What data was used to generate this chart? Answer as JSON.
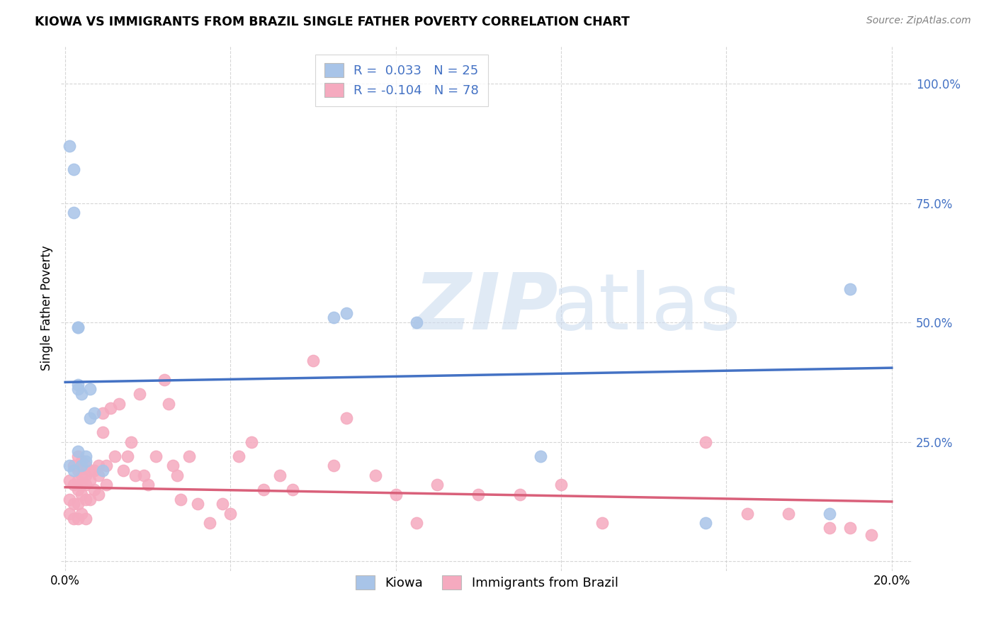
{
  "title": "KIOWA VS IMMIGRANTS FROM BRAZIL SINGLE FATHER POVERTY CORRELATION CHART",
  "source": "Source: ZipAtlas.com",
  "ylabel": "Single Father Poverty",
  "xlim": [
    -0.001,
    0.205
  ],
  "ylim": [
    -0.02,
    1.08
  ],
  "kiowa_R": 0.033,
  "kiowa_N": 25,
  "brazil_R": -0.104,
  "brazil_N": 78,
  "kiowa_color": "#a8c4e8",
  "brazil_color": "#f5aabf",
  "kiowa_line_color": "#4472C4",
  "brazil_line_color": "#d9607a",
  "kiowa_x": [
    0.001,
    0.002,
    0.002,
    0.003,
    0.003,
    0.003,
    0.003,
    0.004,
    0.004,
    0.005,
    0.005,
    0.006,
    0.006,
    0.007,
    0.009,
    0.065,
    0.068,
    0.085,
    0.115,
    0.155,
    0.185,
    0.19,
    0.001,
    0.002,
    0.003
  ],
  "kiowa_y": [
    0.87,
    0.82,
    0.73,
    0.49,
    0.49,
    0.37,
    0.36,
    0.35,
    0.2,
    0.22,
    0.21,
    0.36,
    0.3,
    0.31,
    0.19,
    0.51,
    0.52,
    0.5,
    0.22,
    0.08,
    0.1,
    0.57,
    0.2,
    0.19,
    0.23
  ],
  "brazil_x": [
    0.001,
    0.001,
    0.001,
    0.002,
    0.002,
    0.002,
    0.002,
    0.003,
    0.003,
    0.003,
    0.003,
    0.003,
    0.003,
    0.004,
    0.004,
    0.004,
    0.004,
    0.004,
    0.005,
    0.005,
    0.005,
    0.005,
    0.005,
    0.006,
    0.006,
    0.006,
    0.007,
    0.007,
    0.008,
    0.008,
    0.008,
    0.009,
    0.009,
    0.01,
    0.01,
    0.011,
    0.012,
    0.013,
    0.014,
    0.015,
    0.016,
    0.017,
    0.018,
    0.019,
    0.02,
    0.022,
    0.024,
    0.025,
    0.026,
    0.027,
    0.028,
    0.03,
    0.032,
    0.035,
    0.038,
    0.04,
    0.042,
    0.045,
    0.048,
    0.052,
    0.055,
    0.06,
    0.065,
    0.068,
    0.075,
    0.08,
    0.085,
    0.09,
    0.1,
    0.11,
    0.12,
    0.13,
    0.155,
    0.165,
    0.175,
    0.185,
    0.19,
    0.195
  ],
  "brazil_y": [
    0.17,
    0.13,
    0.1,
    0.2,
    0.16,
    0.12,
    0.09,
    0.22,
    0.19,
    0.17,
    0.15,
    0.12,
    0.09,
    0.21,
    0.18,
    0.16,
    0.14,
    0.1,
    0.2,
    0.18,
    0.16,
    0.13,
    0.09,
    0.19,
    0.17,
    0.13,
    0.19,
    0.15,
    0.2,
    0.18,
    0.14,
    0.31,
    0.27,
    0.2,
    0.16,
    0.32,
    0.22,
    0.33,
    0.19,
    0.22,
    0.25,
    0.18,
    0.35,
    0.18,
    0.16,
    0.22,
    0.38,
    0.33,
    0.2,
    0.18,
    0.13,
    0.22,
    0.12,
    0.08,
    0.12,
    0.1,
    0.22,
    0.25,
    0.15,
    0.18,
    0.15,
    0.42,
    0.2,
    0.3,
    0.18,
    0.14,
    0.08,
    0.16,
    0.14,
    0.14,
    0.16,
    0.08,
    0.25,
    0.1,
    0.1,
    0.07,
    0.07,
    0.055
  ],
  "kiowa_line_x0": 0.0,
  "kiowa_line_y0": 0.375,
  "kiowa_line_x1": 0.2,
  "kiowa_line_y1": 0.405,
  "brazil_line_x0": 0.0,
  "brazil_line_y0": 0.155,
  "brazil_line_x1": 0.2,
  "brazil_line_y1": 0.125
}
